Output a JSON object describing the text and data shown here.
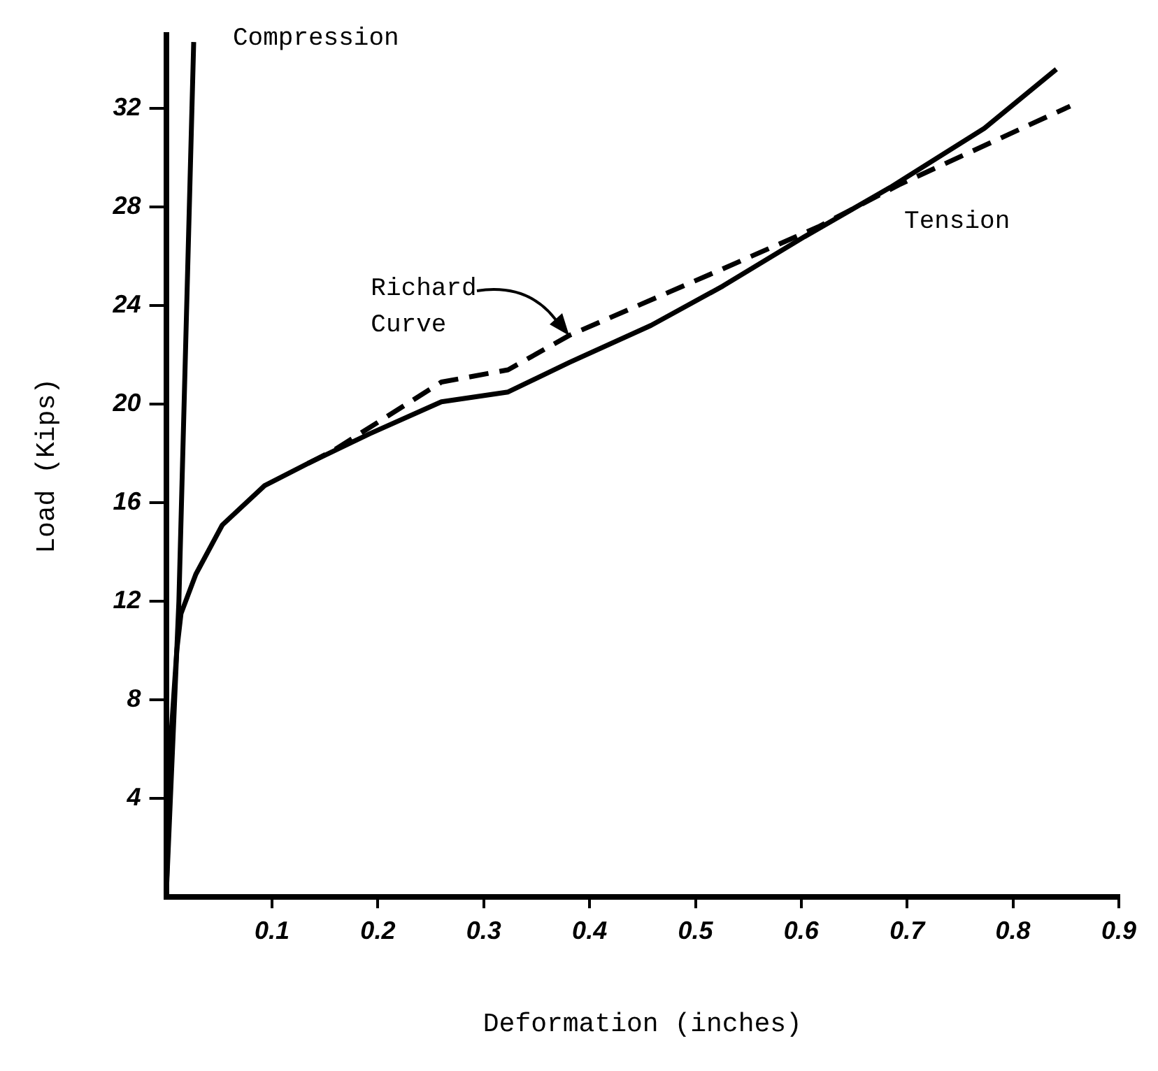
{
  "chart_data": {
    "type": "line",
    "xlabel": "Deformation (inches)",
    "ylabel": "Load (Kips)",
    "xlim": [
      0,
      0.9
    ],
    "ylim": [
      0,
      35
    ],
    "xticks": [
      0.1,
      0.2,
      0.3,
      0.4,
      0.5,
      0.6,
      0.7,
      0.8,
      0.9
    ],
    "yticks": [
      4,
      8,
      12,
      16,
      20,
      24,
      28,
      32
    ],
    "grid": false,
    "legend": false,
    "marker": "none",
    "annotations": [
      {
        "text": "Richard Curve",
        "x": 0.381,
        "y": 22.8
      }
    ],
    "series": [
      {
        "name": "Compression",
        "color": "#000000",
        "line_style": "solid",
        "x": [
          0,
          0.012,
          0.026
        ],
        "values": [
          0,
          12,
          34.7
        ]
      },
      {
        "name": "Tension",
        "color": "#000000",
        "line_style": "solid",
        "x": [
          0,
          0.005,
          0.01,
          0.014,
          0.028,
          0.053,
          0.093,
          0.134,
          0.192,
          0.26,
          0.323,
          0.381,
          0.458,
          0.526,
          0.603,
          0.684,
          0.773,
          0.841
        ],
        "values": [
          0,
          6.8,
          10,
          11.5,
          13.1,
          15.1,
          16.7,
          17.6,
          18.8,
          20.1,
          20.5,
          21.7,
          23.2,
          24.8,
          26.8,
          28.8,
          31.2,
          33.6
        ]
      },
      {
        "color": "#000000",
        "line_style": "dashed",
        "x": [
          0.134,
          0.157,
          0.26,
          0.323,
          0.381,
          0.526,
          0.616,
          0.692,
          0.854
        ],
        "values": [
          17.6,
          18.1,
          20.9,
          21.4,
          22.8,
          25.5,
          27.2,
          28.9,
          32.1
        ]
      }
    ]
  }
}
